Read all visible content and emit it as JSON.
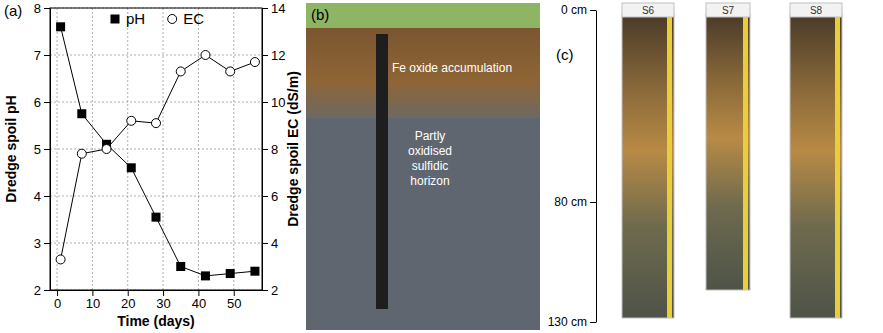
{
  "chart_data": {
    "type": "line",
    "panel_label": "(a)",
    "x_label": "Time (days)",
    "y_label": "Dredge spoil pH",
    "y2_label": "Dredge spoil EC (dS/m)",
    "x": [
      1,
      7,
      14,
      21,
      28,
      35,
      42,
      49,
      56
    ],
    "series": [
      {
        "name": "pH",
        "color": "#000000",
        "marker": "filled-square",
        "values": [
          7.6,
          5.75,
          5.1,
          4.6,
          3.55,
          2.5,
          2.3,
          2.35,
          2.4
        ]
      },
      {
        "name": "EC",
        "color": "#000000",
        "marker": "open-circle",
        "axis": "y2",
        "values": [
          3.3,
          7.8,
          8.0,
          9.2,
          9.1,
          11.3,
          12.0,
          11.3,
          11.7
        ]
      }
    ],
    "xlim": [
      -2,
      58
    ],
    "xticks": [
      0,
      10,
      20,
      30,
      40,
      50
    ],
    "ylim": [
      2,
      8
    ],
    "yticks": [
      2,
      3,
      4,
      5,
      6,
      7,
      8
    ],
    "y2lim": [
      2,
      14
    ],
    "y2ticks": [
      2,
      4,
      6,
      8,
      10,
      12,
      14
    ],
    "grid": true,
    "legend": "top"
  },
  "photo_panels": [
    {
      "label": "(b)",
      "annotations": [
        "Fe oxide accumulation",
        "Partly oxidised sulfidic horizon"
      ]
    },
    {
      "label": "(c)",
      "cores": [
        "S6",
        "S7",
        "S8"
      ],
      "depth_range": [
        0,
        130
      ],
      "depth_ticks": [
        {
          "value": 0,
          "label": "0 cm"
        },
        {
          "value": 80,
          "label": "80 cm"
        },
        {
          "value": 130,
          "label": "130 cm"
        }
      ]
    }
  ]
}
